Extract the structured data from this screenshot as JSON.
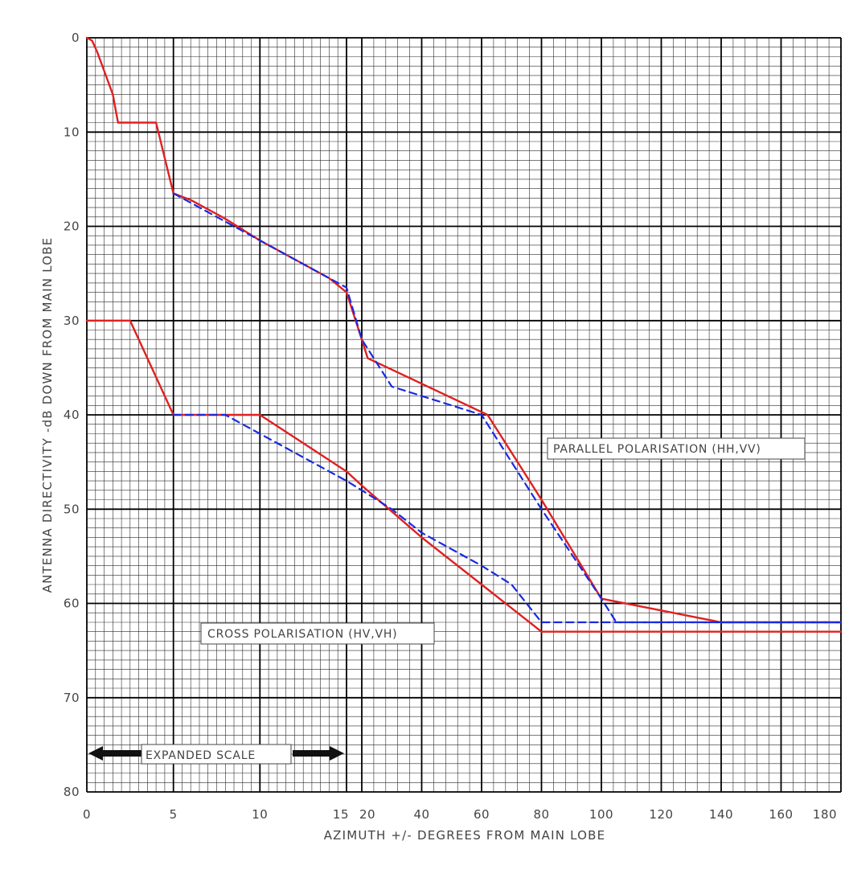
{
  "chart_data": {
    "type": "line",
    "xlabel": "AZIMUTH +/- DEGREES FROM MAIN LOBE",
    "ylabel": "ANTENNA DIRECTIVITY -dB DOWN FROM MAIN LOBE",
    "x_scale": "piecewise linear: 0-15 expanded, 15-20 joined, 20-180 compressed",
    "ylim": [
      0,
      80
    ],
    "y_inverted": true,
    "grid": true,
    "x_ticks": [
      {
        "value": 0,
        "label": "0"
      },
      {
        "value": 5,
        "label": "5"
      },
      {
        "value": 10,
        "label": "10"
      },
      {
        "value": 15,
        "label": "15"
      },
      {
        "value": 20,
        "label": "20"
      },
      {
        "value": 40,
        "label": "40"
      },
      {
        "value": 60,
        "label": "60"
      },
      {
        "value": 80,
        "label": "80"
      },
      {
        "value": 100,
        "label": "100"
      },
      {
        "value": 120,
        "label": "120"
      },
      {
        "value": 140,
        "label": "140"
      },
      {
        "value": 160,
        "label": "160"
      },
      {
        "value": 180,
        "label": "180"
      }
    ],
    "y_ticks": [
      {
        "value": 0,
        "label": "0"
      },
      {
        "value": 10,
        "label": "10"
      },
      {
        "value": 20,
        "label": "20"
      },
      {
        "value": 30,
        "label": "30"
      },
      {
        "value": 40,
        "label": "40"
      },
      {
        "value": 50,
        "label": "50"
      },
      {
        "value": 60,
        "label": "60"
      },
      {
        "value": 70,
        "label": "70"
      },
      {
        "value": 80,
        "label": "80"
      }
    ],
    "series": [
      {
        "color": "#e02020",
        "style": "solid",
        "group": "parallel",
        "points": [
          [
            0,
            0
          ],
          [
            0.3,
            0.3
          ],
          [
            0.6,
            1.5
          ],
          [
            1.0,
            3.5
          ],
          [
            1.5,
            6.0
          ],
          [
            1.8,
            9.0
          ],
          [
            4.0,
            9.0
          ],
          [
            5.0,
            16.5
          ],
          [
            6.0,
            17.2
          ],
          [
            8.0,
            19.2
          ],
          [
            10.0,
            21.5
          ],
          [
            12.0,
            23.5
          ],
          [
            14.0,
            25.5
          ],
          [
            15.0,
            27.0
          ],
          [
            20.0,
            32.0
          ],
          [
            22.0,
            34.0
          ],
          [
            30.0,
            35.2
          ],
          [
            62.0,
            40.0
          ],
          [
            80.0,
            49.0
          ],
          [
            100.0,
            59.5
          ],
          [
            140.0,
            62.0
          ],
          [
            180.0,
            62.0
          ]
        ]
      },
      {
        "color": "#1a2adf",
        "style": "dashed",
        "group": "parallel",
        "points": [
          [
            5.0,
            16.5
          ],
          [
            8.0,
            19.5
          ],
          [
            10.0,
            21.5
          ],
          [
            13.0,
            24.5
          ],
          [
            15.0,
            26.5
          ],
          [
            20.0,
            32.0
          ],
          [
            30.0,
            37.0
          ],
          [
            60.0,
            40.0
          ],
          [
            80.0,
            50.0
          ],
          [
            100.0,
            59.5
          ],
          [
            105.0,
            62.0
          ],
          [
            180.0,
            62.0
          ]
        ]
      },
      {
        "color": "#e02020",
        "style": "solid",
        "group": "cross",
        "points": [
          [
            0,
            30.0
          ],
          [
            2.5,
            30.0
          ],
          [
            5.0,
            40.0
          ],
          [
            10.0,
            40.0
          ],
          [
            15.0,
            46.0
          ],
          [
            20.0,
            47.5
          ],
          [
            40.0,
            53.0
          ],
          [
            60.0,
            58.0
          ],
          [
            80.0,
            63.0
          ],
          [
            180.0,
            63.0
          ]
        ]
      },
      {
        "color": "#1a2adf",
        "style": "dashed",
        "group": "cross",
        "points": [
          [
            5.0,
            40.0
          ],
          [
            8.0,
            40.0
          ],
          [
            10.0,
            42.0
          ],
          [
            15.0,
            47.0
          ],
          [
            20.0,
            48.0
          ],
          [
            30.0,
            50.0
          ],
          [
            40.0,
            52.5
          ],
          [
            60.0,
            56.0
          ],
          [
            70.0,
            58.0
          ],
          [
            80.0,
            62.0
          ],
          [
            180.0,
            62.0
          ]
        ]
      }
    ],
    "annotations": {
      "parallel": "PARALLEL POLARISATION (HH,VV)",
      "cross": "CROSS POLARISATION (HV,VH)",
      "expanded": "EXPANDED SCALE"
    }
  }
}
